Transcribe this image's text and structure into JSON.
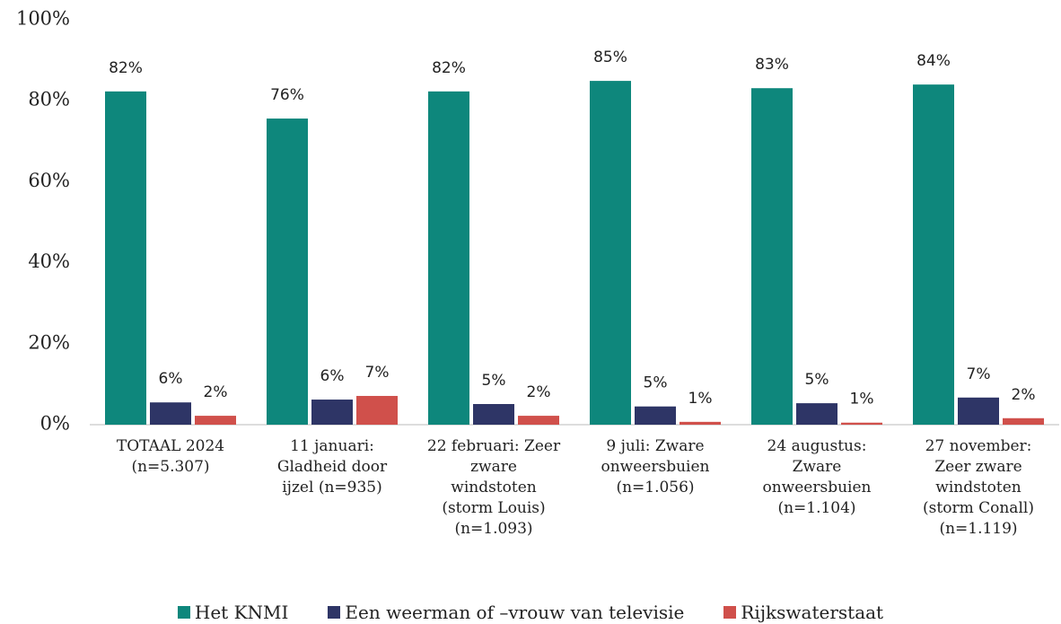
{
  "chart_data": {
    "type": "bar",
    "categories": [
      "TOTAAL 2024\n(n=5.307)",
      "11 januari:\nGladheid door\nijzel (n=935)",
      "22 februari: Zeer\nzware\nwindstoten\n(storm Louis)\n(n=1.093)",
      "9 juli: Zware\nonweersbuien\n(n=1.056)",
      "24 augustus:\nZware\nonweersbuien\n(n=1.104)",
      "27 november:\nZeer zware\nwindstoten\n(storm Conall)\n(n=1.119)"
    ],
    "series": [
      {
        "name": "Het KNMI",
        "color": "#0e877c",
        "values": [
          82.3,
          75.6,
          82.3,
          84.9,
          83.1,
          84.0
        ],
        "value_labels": [
          "82%",
          "76%",
          "82%",
          "85%",
          "83%",
          "84%"
        ]
      },
      {
        "name": "Een weerman of –vrouw van televisie",
        "color": "#2e3566",
        "values": [
          5.5,
          6.2,
          5.1,
          4.5,
          5.3,
          6.7
        ],
        "value_labels": [
          "6%",
          "6%",
          "5%",
          "5%",
          "5%",
          "7%"
        ]
      },
      {
        "name": "Rijkswaterstaat",
        "color": "#d0504b",
        "values": [
          2.2,
          7.1,
          2.2,
          0.7,
          0.5,
          1.6
        ],
        "value_labels": [
          "2%",
          "7%",
          "2%",
          "1%",
          "1%",
          "2%"
        ]
      }
    ],
    "ylim": [
      0,
      100
    ],
    "yticks": [
      {
        "value": 0,
        "label": "0%"
      },
      {
        "value": 20,
        "label": "20%"
      },
      {
        "value": 40,
        "label": "40%"
      },
      {
        "value": 60,
        "label": "60%"
      },
      {
        "value": 80,
        "label": "80%"
      },
      {
        "value": 100,
        "label": "100%"
      }
    ],
    "grid": false,
    "legend": "bottom"
  }
}
